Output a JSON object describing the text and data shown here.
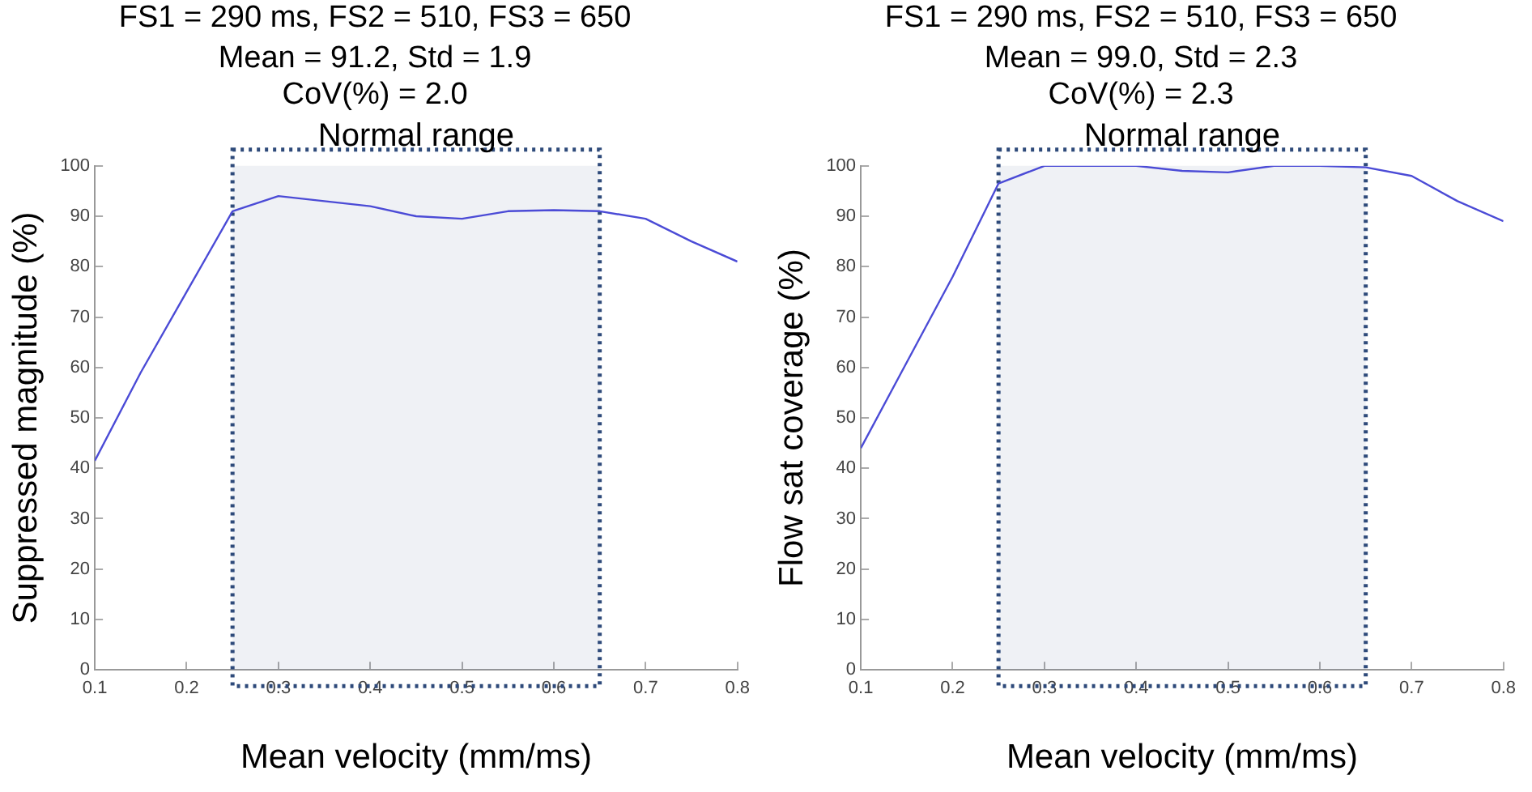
{
  "chart_data": [
    {
      "type": "line",
      "title": "FS1 = 290 ms, FS2 = 510, FS3 = 650",
      "subtitle": "Mean = 91.2, Std = 1.9",
      "annotations": [
        "CoV(%) = 2.0"
      ],
      "xlabel": "Mean velocity (mm/ms)",
      "ylabel": "Suppressed magnitude (%)",
      "x": [
        0.1,
        0.15,
        0.2,
        0.25,
        0.3,
        0.35,
        0.4,
        0.45,
        0.5,
        0.55,
        0.6,
        0.65,
        0.7,
        0.75,
        0.8
      ],
      "series": [
        {
          "color": "#4b4bd6",
          "values": [
            41.5,
            59,
            75,
            91,
            94,
            93,
            92,
            90,
            89.5,
            91,
            91.2,
            91,
            89.5,
            85,
            81
          ]
        }
      ],
      "xlim": [
        0.1,
        0.8
      ],
      "xticks": [
        0.1,
        0.2,
        0.3,
        0.4,
        0.5,
        0.6,
        0.7,
        0.8
      ],
      "ylim": [
        0,
        100
      ],
      "yticks": [
        0,
        10,
        20,
        30,
        40,
        50,
        60,
        70,
        80,
        90,
        100
      ],
      "bands": [
        {
          "axis": "x",
          "from": 0.25,
          "to": 0.65,
          "label": "Normal range",
          "color": "#2e4a7a"
        }
      ],
      "grid": false,
      "legend": false,
      "marker": "none",
      "line_style": "solid"
    },
    {
      "type": "line",
      "title": "FS1 = 290 ms, FS2 = 510, FS3 = 650",
      "subtitle": "Mean = 99.0, Std = 2.3",
      "annotations": [
        "CoV(%) = 2.3"
      ],
      "xlabel": "Mean velocity (mm/ms)",
      "ylabel": "Flow sat coverage (%)",
      "x": [
        0.1,
        0.15,
        0.2,
        0.25,
        0.3,
        0.35,
        0.4,
        0.45,
        0.5,
        0.55,
        0.6,
        0.65,
        0.7,
        0.75,
        0.8
      ],
      "series": [
        {
          "color": "#4b4bd6",
          "values": [
            44,
            61,
            78,
            96.5,
            100,
            100,
            100,
            99,
            98.7,
            100,
            100,
            99.7,
            98,
            93,
            89
          ]
        }
      ],
      "xlim": [
        0.1,
        0.8
      ],
      "xticks": [
        0.1,
        0.2,
        0.3,
        0.4,
        0.5,
        0.6,
        0.7,
        0.8
      ],
      "ylim": [
        0,
        100
      ],
      "yticks": [
        0,
        10,
        20,
        30,
        40,
        50,
        60,
        70,
        80,
        90,
        100
      ],
      "bands": [
        {
          "axis": "x",
          "from": 0.25,
          "to": 0.65,
          "label": "Normal range",
          "color": "#2e4a7a"
        }
      ],
      "grid": false,
      "legend": false,
      "marker": "none",
      "line_style": "solid"
    }
  ]
}
